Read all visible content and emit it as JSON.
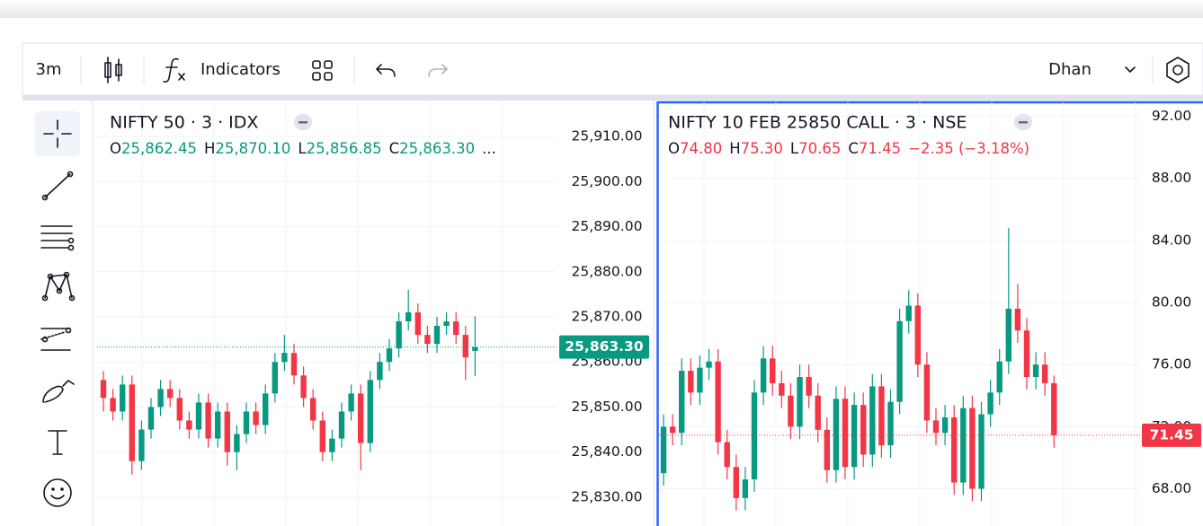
{
  "toolbar": {
    "interval": "3m",
    "indicators": "Indicators",
    "broker": "Dhan"
  },
  "chart_data": [
    {
      "type": "candlestick",
      "title": "NIFTY 50 · 3 · IDX",
      "ohlc_prefixes": [
        "O",
        "H",
        "L",
        "C"
      ],
      "ohlc_labels": [
        "25,862.45",
        "25,870.10",
        "25,856.85",
        "25,863.30"
      ],
      "more": "...",
      "open": [
        25856,
        25852,
        25849,
        25855,
        25838,
        25845,
        25850,
        25854,
        25852,
        25847,
        25845,
        25851,
        25843,
        25849,
        25840,
        25844,
        25849,
        25846,
        25853,
        25860,
        25862,
        25857,
        25852,
        25847,
        25840,
        25843,
        25849,
        25853,
        25842,
        25856,
        25860,
        25863,
        25869,
        25871,
        25866,
        25864,
        25868,
        25869,
        25866,
        25862.45
      ],
      "high": [
        25858,
        25854,
        25857,
        25857,
        25847,
        25852,
        25856,
        25856,
        25854,
        25849,
        25853,
        25853,
        25851,
        25851,
        25846,
        25851,
        25851,
        25855,
        25862,
        25866,
        25864,
        25859,
        25854,
        25849,
        25845,
        25851,
        25855,
        25855,
        25858,
        25862,
        25865,
        25871,
        25876,
        25873,
        25868,
        25870,
        25871,
        25871,
        25868,
        25870.1
      ],
      "low": [
        25849,
        25847,
        25847,
        25835,
        25836,
        25843,
        25848,
        25850,
        25845,
        25843,
        25843,
        25841,
        25841,
        25837,
        25836,
        25842,
        25844,
        25844,
        25851,
        25858,
        25855,
        25850,
        25845,
        25838,
        25838,
        25841,
        25847,
        25836,
        25840,
        25854,
        25858,
        25861,
        25867,
        25864,
        25862,
        25862,
        25866,
        25864,
        25856,
        25856.85
      ],
      "close": [
        25852,
        25849,
        25855,
        25838,
        25845,
        25850,
        25854,
        25852,
        25847,
        25845,
        25851,
        25843,
        25849,
        25840,
        25844,
        25849,
        25846,
        25853,
        25860,
        25862,
        25857,
        25852,
        25847,
        25840,
        25843,
        25849,
        25853,
        25842,
        25856,
        25860,
        25863,
        25869,
        25871,
        25866,
        25864,
        25868,
        25869,
        25866,
        25861,
        25863.3
      ],
      "ylim": [
        25823.6,
        25918
      ],
      "yticks": [
        {
          "value": 25830,
          "label": "25,830.00"
        },
        {
          "value": 25840,
          "label": "25,840.00"
        },
        {
          "value": 25850,
          "label": "25,850.00"
        },
        {
          "value": 25860,
          "label": "25,860.00"
        },
        {
          "value": 25870,
          "label": "25,870.00"
        },
        {
          "value": 25880,
          "label": "25,880.00"
        },
        {
          "value": 25890,
          "label": "25,890.00"
        },
        {
          "value": 25900,
          "label": "25,900.00"
        },
        {
          "value": 25910,
          "label": "25,910.00"
        }
      ],
      "last_price_label": "25,863.30",
      "up_color": "#089981",
      "down_color": "#f23645"
    },
    {
      "type": "candlestick",
      "title": "NIFTY 10 FEB 25850 CALL · 3 · NSE",
      "ohlc_prefixes": [
        "O",
        "H",
        "L",
        "C"
      ],
      "ohlc_labels": [
        "74.80",
        "75.30",
        "70.65",
        "71.45"
      ],
      "change_label": "−2.35 (−3.18%)",
      "open": [
        69.0,
        72.0,
        71.6,
        75.6,
        74.2,
        75.8,
        76.2,
        71.0,
        69.4,
        67.4,
        68.6,
        74.2,
        76.4,
        74.8,
        74.0,
        72.0,
        75.2,
        74.0,
        71.8,
        69.2,
        73.8,
        69.4,
        73.4,
        70.2,
        74.6,
        70.8,
        73.6,
        78.8,
        79.8,
        76.0,
        72.4,
        71.6,
        72.6,
        68.4,
        73.2,
        68.0,
        72.8,
        74.2,
        76.2,
        79.6,
        78.2,
        75.2,
        76.0,
        74.8
      ],
      "high": [
        72.8,
        72.8,
        76.4,
        76.4,
        76.6,
        77.0,
        77.0,
        71.8,
        70.2,
        69.4,
        75.0,
        77.2,
        77.2,
        75.6,
        74.8,
        76.0,
        76.0,
        74.8,
        72.6,
        74.6,
        74.6,
        74.2,
        74.2,
        75.4,
        75.4,
        74.4,
        79.6,
        80.8,
        80.6,
        76.8,
        73.2,
        73.4,
        73.4,
        74.0,
        74.0,
        73.6,
        75.0,
        77.0,
        84.8,
        81.2,
        79.0,
        76.8,
        76.8,
        75.3
      ],
      "low": [
        68.2,
        70.8,
        70.8,
        73.4,
        73.4,
        75.0,
        70.2,
        68.6,
        66.6,
        66.6,
        67.8,
        73.4,
        74.0,
        73.2,
        71.2,
        71.2,
        73.2,
        71.0,
        68.4,
        68.4,
        68.6,
        68.6,
        69.4,
        69.4,
        70.0,
        70.0,
        72.8,
        78.0,
        75.2,
        71.6,
        70.8,
        70.8,
        67.6,
        67.6,
        67.2,
        67.2,
        72.0,
        73.4,
        75.4,
        77.4,
        74.4,
        74.4,
        74.0,
        70.65
      ],
      "close": [
        72.0,
        71.6,
        75.6,
        74.2,
        75.8,
        76.2,
        71.0,
        69.4,
        67.4,
        68.6,
        74.2,
        76.4,
        74.8,
        74.0,
        72.0,
        75.2,
        74.0,
        71.8,
        69.2,
        73.8,
        69.4,
        73.4,
        70.2,
        74.6,
        70.8,
        73.6,
        78.8,
        79.8,
        76.0,
        72.4,
        71.6,
        72.6,
        68.4,
        73.2,
        68.0,
        72.8,
        74.2,
        76.2,
        79.6,
        78.2,
        75.2,
        76.0,
        74.8,
        71.45
      ],
      "ylim": [
        65.6,
        92.9
      ],
      "yticks": [
        {
          "value": 68,
          "label": "68.00"
        },
        {
          "value": 72,
          "label": "72.00"
        },
        {
          "value": 76,
          "label": "76.00"
        },
        {
          "value": 80,
          "label": "80.00"
        },
        {
          "value": 84,
          "label": "84.00"
        },
        {
          "value": 88,
          "label": "88.00"
        },
        {
          "value": 92,
          "label": "92.00"
        }
      ],
      "last_price_label": "71.45",
      "up_color": "#089981",
      "down_color": "#f23645"
    }
  ]
}
